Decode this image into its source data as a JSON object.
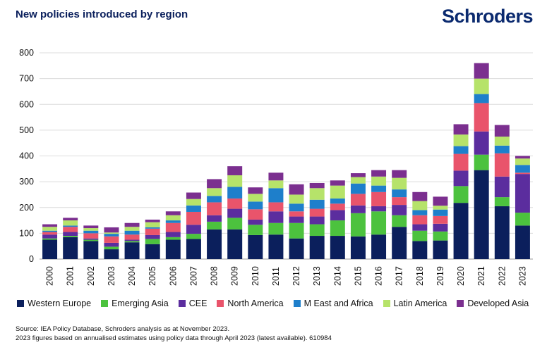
{
  "header": {
    "title": "New policies introduced by region",
    "brand": "Schroders"
  },
  "footer": {
    "source_line1": "Source: IEA Policy Database, Schroders analysis as at November 2023.",
    "source_line2": "2023 figures based on annualised estimates using policy data through April 2023 (latest available). 610984"
  },
  "chart_data": {
    "type": "bar",
    "stacked": true,
    "title": "New policies introduced by region",
    "xlabel": "",
    "ylabel": "",
    "ylim": [
      0,
      800
    ],
    "yticks": [
      0,
      100,
      200,
      300,
      400,
      500,
      600,
      700,
      800
    ],
    "grid": true,
    "legend_position": "bottom",
    "categories": [
      "2000",
      "2001",
      "2002",
      "2003",
      "2004",
      "2005",
      "2006",
      "2007",
      "2008",
      "2009",
      "2010",
      "2011",
      "2012",
      "2013",
      "2014",
      "2015",
      "2016",
      "2017",
      "2018",
      "2019",
      "2020",
      "2021",
      "2022",
      "2023"
    ],
    "series": [
      {
        "name": "Western Europe",
        "color": "#0b1f5c",
        "values": [
          75,
          85,
          70,
          38,
          65,
          58,
          75,
          78,
          115,
          115,
          93,
          95,
          80,
          90,
          90,
          88,
          95,
          125,
          70,
          72,
          218,
          345,
          205,
          130
        ]
      },
      {
        "name": "Emerging Asia",
        "color": "#4cc23e",
        "values": [
          5,
          5,
          5,
          10,
          5,
          20,
          10,
          20,
          30,
          45,
          40,
          45,
          60,
          45,
          60,
          90,
          90,
          45,
          40,
          35,
          65,
          60,
          35,
          50
        ]
      },
      {
        "name": "CEE",
        "color": "#5b2d9e",
        "values": [
          15,
          15,
          5,
          15,
          5,
          15,
          20,
          35,
          25,
          35,
          20,
          45,
          25,
          30,
          40,
          30,
          20,
          40,
          25,
          30,
          60,
          90,
          80,
          150
        ]
      },
      {
        "name": "North America",
        "color": "#e9546b",
        "values": [
          10,
          20,
          20,
          25,
          20,
          25,
          35,
          50,
          50,
          40,
          40,
          35,
          20,
          30,
          25,
          45,
          55,
          30,
          35,
          30,
          65,
          110,
          90,
          5
        ]
      },
      {
        "name": "M East and Africa",
        "color": "#1e7fcb",
        "values": [
          5,
          5,
          10,
          10,
          15,
          5,
          10,
          25,
          25,
          45,
          30,
          55,
          30,
          35,
          20,
          40,
          25,
          30,
          20,
          25,
          30,
          35,
          30,
          30
        ]
      },
      {
        "name": "Latin America",
        "color": "#b6e36a",
        "values": [
          15,
          20,
          10,
          5,
          15,
          20,
          20,
          25,
          30,
          45,
          30,
          30,
          35,
          45,
          50,
          25,
          35,
          45,
          35,
          15,
          45,
          60,
          35,
          25
        ]
      },
      {
        "name": "Developed Asia",
        "color": "#7b2f8f",
        "values": [
          10,
          10,
          10,
          20,
          15,
          10,
          15,
          25,
          35,
          35,
          25,
          30,
          40,
          20,
          20,
          15,
          25,
          30,
          35,
          35,
          40,
          60,
          45,
          10
        ]
      }
    ]
  }
}
